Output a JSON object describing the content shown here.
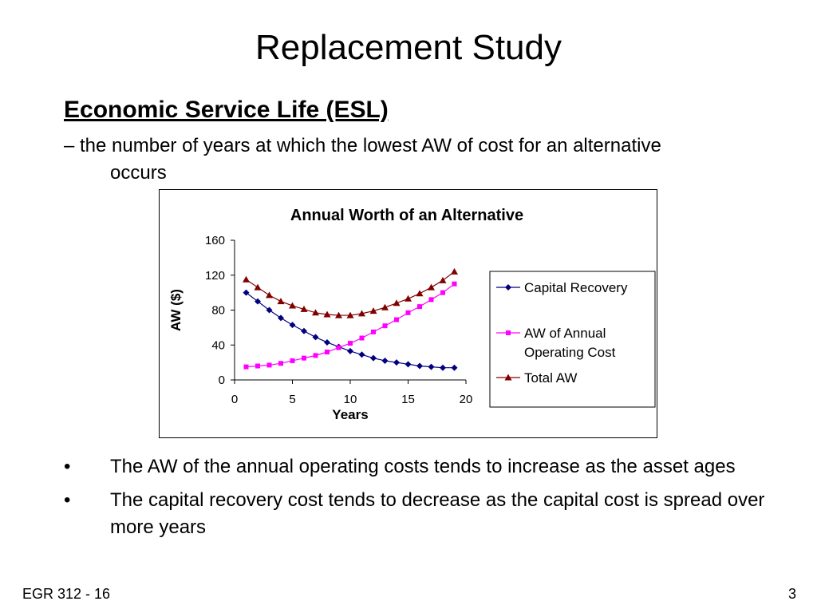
{
  "slide": {
    "title": "Replacement Study",
    "heading": "Economic Service Life (ESL)",
    "definition": "– the number of years at which the lowest AW of cost for an alternative occurs",
    "bullets": [
      "The AW of the annual operating costs tends to increase as the asset ages",
      "The capital recovery cost tends to decrease as the capital cost is spread over more years"
    ],
    "bullet_symbol": "•",
    "footer_left": "EGR 312 - 16",
    "page_number": "3"
  },
  "chart_data": {
    "type": "line",
    "title": "Annual Worth of an Alternative",
    "xlabel": "Years",
    "ylabel": "AW ($)",
    "xlim": [
      0,
      20
    ],
    "ylim": [
      0,
      160
    ],
    "xticks": [
      0,
      5,
      10,
      15,
      20
    ],
    "yticks": [
      0,
      40,
      80,
      120,
      160
    ],
    "grid": false,
    "legend_position": "right",
    "x": [
      1,
      2,
      3,
      4,
      5,
      6,
      7,
      8,
      9,
      10,
      11,
      12,
      13,
      14,
      15,
      16,
      17,
      18,
      19
    ],
    "series": [
      {
        "name": "Capital Recovery",
        "color": "#000080",
        "marker": "diamond",
        "values": [
          100,
          90,
          80,
          71,
          63,
          56,
          49,
          43,
          38,
          33,
          29,
          25,
          22,
          20,
          18,
          16,
          15,
          14,
          14
        ]
      },
      {
        "name": "AW of Annual Operating Cost",
        "legend_lines": [
          "AW of Annual",
          "Operating Cost"
        ],
        "color": "#ff00ff",
        "marker": "square",
        "values": [
          15,
          16,
          17,
          19,
          22,
          25,
          28,
          32,
          37,
          42,
          48,
          55,
          62,
          69,
          77,
          84,
          92,
          100,
          110
        ]
      },
      {
        "name": "Total AW",
        "color": "#800000",
        "marker": "triangle",
        "values": [
          115,
          106,
          97,
          90,
          85,
          81,
          77,
          75,
          74,
          74,
          76,
          79,
          83,
          88,
          93,
          99,
          106,
          114,
          124
        ]
      }
    ]
  }
}
